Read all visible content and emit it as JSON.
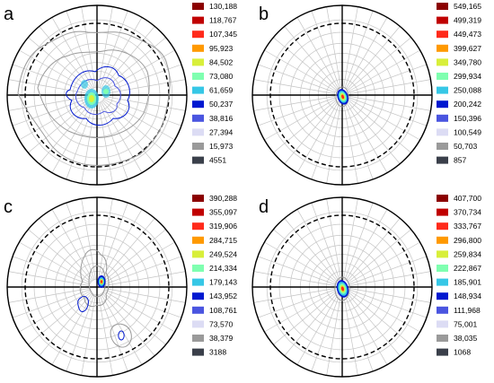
{
  "chart_data": [
    {
      "type": "contour",
      "panel": "a",
      "legend": [
        {
          "label": "130,188",
          "color": "#8b0000"
        },
        {
          "label": "118,767",
          "color": "#c00000"
        },
        {
          "label": "107,345",
          "color": "#ff2a1a"
        },
        {
          "label": "95,923",
          "color": "#ff9900"
        },
        {
          "label": "84,502",
          "color": "#d8ef3a"
        },
        {
          "label": "73,080",
          "color": "#7fffb0"
        },
        {
          "label": "61,659",
          "color": "#36c7e6"
        },
        {
          "label": "50,237",
          "color": "#0018d0"
        },
        {
          "label": "38,816",
          "color": "#4a55e0"
        },
        {
          "label": "27,394",
          "color": "#dcdcf4"
        },
        {
          "label": "15,973",
          "color": "#9a9a9a"
        },
        {
          "label": "4551",
          "color": "#3a3f4a"
        }
      ]
    },
    {
      "type": "contour",
      "panel": "b",
      "legend": [
        {
          "label": "549,165",
          "color": "#8b0000"
        },
        {
          "label": "499,319",
          "color": "#c00000"
        },
        {
          "label": "449,473",
          "color": "#ff2a1a"
        },
        {
          "label": "399,627",
          "color": "#ff9900"
        },
        {
          "label": "349,780",
          "color": "#d8ef3a"
        },
        {
          "label": "299,934",
          "color": "#7fffb0"
        },
        {
          "label": "250,088",
          "color": "#36c7e6"
        },
        {
          "label": "200,242",
          "color": "#0018d0"
        },
        {
          "label": "150,396",
          "color": "#4a55e0"
        },
        {
          "label": "100,549",
          "color": "#dcdcf4"
        },
        {
          "label": "50,703",
          "color": "#9a9a9a"
        },
        {
          "label": "857",
          "color": "#3a3f4a"
        }
      ]
    },
    {
      "type": "contour",
      "panel": "c",
      "legend": [
        {
          "label": "390,288",
          "color": "#8b0000"
        },
        {
          "label": "355,097",
          "color": "#c00000"
        },
        {
          "label": "319,906",
          "color": "#ff2a1a"
        },
        {
          "label": "284,715",
          "color": "#ff9900"
        },
        {
          "label": "249,524",
          "color": "#d8ef3a"
        },
        {
          "label": "214,334",
          "color": "#7fffb0"
        },
        {
          "label": "179,143",
          "color": "#36c7e6"
        },
        {
          "label": "143,952",
          "color": "#0018d0"
        },
        {
          "label": "108,761",
          "color": "#4a55e0"
        },
        {
          "label": "73,570",
          "color": "#dcdcf4"
        },
        {
          "label": "38,379",
          "color": "#9a9a9a"
        },
        {
          "label": "3188",
          "color": "#3a3f4a"
        }
      ]
    },
    {
      "type": "contour",
      "panel": "d",
      "legend": [
        {
          "label": "407,700",
          "color": "#8b0000"
        },
        {
          "label": "370,734",
          "color": "#c00000"
        },
        {
          "label": "333,767",
          "color": "#ff2a1a"
        },
        {
          "label": "296,800",
          "color": "#ff9900"
        },
        {
          "label": "259,834",
          "color": "#d8ef3a"
        },
        {
          "label": "222,867",
          "color": "#7fffb0"
        },
        {
          "label": "185,901",
          "color": "#36c7e6"
        },
        {
          "label": "148,934",
          "color": "#0018d0"
        },
        {
          "label": "111,968",
          "color": "#4a55e0"
        },
        {
          "label": "75,001",
          "color": "#dcdcf4"
        },
        {
          "label": "38,035",
          "color": "#9a9a9a"
        },
        {
          "label": "1068",
          "color": "#3a3f4a"
        }
      ]
    }
  ]
}
